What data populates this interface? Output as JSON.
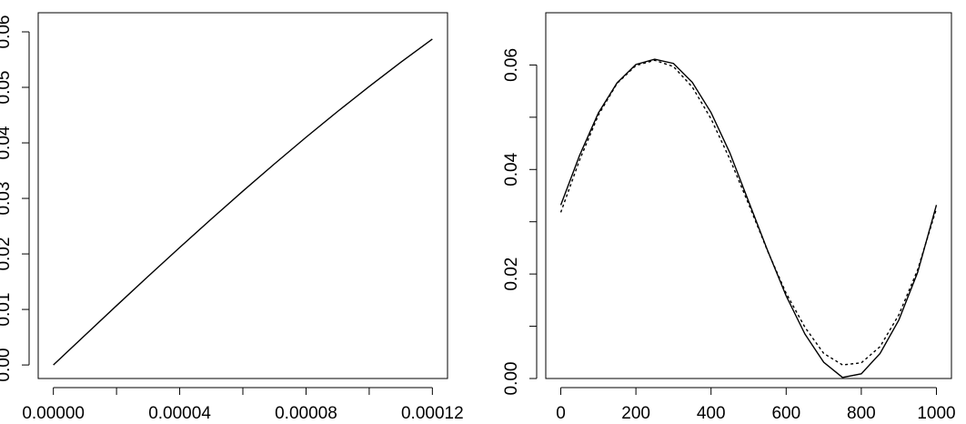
{
  "chart_data": [
    {
      "type": "line",
      "title": "",
      "xlabel": "",
      "ylabel": "",
      "xlim": [
        -4.8e-06,
        0.0001248
      ],
      "ylim": [
        -0.00244,
        0.06344
      ],
      "x_ticks": [
        0,
        2e-05,
        4e-05,
        6e-05,
        8e-05,
        0.0001,
        0.00012
      ],
      "x_tick_labels": [
        "0.00000",
        "",
        "0.00004",
        "",
        "0.00008",
        "",
        "0.00012"
      ],
      "y_ticks": [
        0,
        0.01,
        0.02,
        0.03,
        0.04,
        0.05,
        0.06
      ],
      "y_tick_labels": [
        "0.00",
        "0.01",
        "0.02",
        "0.03",
        "0.04",
        "0.05",
        "0.06"
      ],
      "grid": false,
      "series": [
        {
          "style": "solid",
          "color": "#000000",
          "x": [
            0,
            1e-05,
            2e-05,
            3e-05,
            4e-05,
            5e-05,
            6e-05,
            7e-05,
            8e-05,
            9e-05,
            0.0001,
            0.00011,
            0.00012
          ],
          "y": [
            0,
            0.00535,
            0.01068,
            0.01595,
            0.02116,
            0.02628,
            0.03131,
            0.03622,
            0.04101,
            0.04566,
            0.05016,
            0.05451,
            0.0587
          ]
        }
      ]
    },
    {
      "type": "line",
      "title": "",
      "xlabel": "",
      "ylabel": "",
      "xlim": [
        -40,
        1040
      ],
      "ylim": [
        0,
        0.07
      ],
      "x_ticks": [
        0,
        200,
        400,
        600,
        800,
        1000
      ],
      "x_tick_labels": [
        "0",
        "200",
        "400",
        "600",
        "800",
        "1000"
      ],
      "y_ticks": [
        0,
        0.01,
        0.02,
        0.03,
        0.04,
        0.05,
        0.06
      ],
      "y_tick_labels": [
        "0.00",
        "",
        "0.02",
        "",
        "0.04",
        "",
        "0.06"
      ],
      "grid": false,
      "series": [
        {
          "style": "solid",
          "color": "#000000",
          "x": [
            0,
            50,
            100,
            150,
            200,
            250,
            300,
            350,
            400,
            450,
            500,
            550,
            600,
            650,
            700,
            750,
            800,
            850,
            900,
            950,
            1000
          ],
          "y": [
            0.0332,
            0.0427,
            0.0508,
            0.0566,
            0.0601,
            0.0611,
            0.0603,
            0.0567,
            0.0509,
            0.0432,
            0.0339,
            0.0246,
            0.0158,
            0.0085,
            0.0031,
            0.0002,
            0.0009,
            0.0048,
            0.0112,
            0.0203,
            0.0332
          ]
        },
        {
          "style": "dotted",
          "color": "#000000",
          "x": [
            0,
            50,
            100,
            150,
            200,
            250,
            300,
            350,
            400,
            450,
            500,
            550,
            600,
            650,
            700,
            750,
            800,
            850,
            900,
            950,
            1000
          ],
          "y": [
            0.0318,
            0.0418,
            0.0504,
            0.0565,
            0.0599,
            0.0609,
            0.0597,
            0.0558,
            0.0497,
            0.042,
            0.0334,
            0.0245,
            0.0163,
            0.0098,
            0.0048,
            0.0026,
            0.003,
            0.0061,
            0.0122,
            0.0208,
            0.0325
          ]
        }
      ]
    }
  ]
}
